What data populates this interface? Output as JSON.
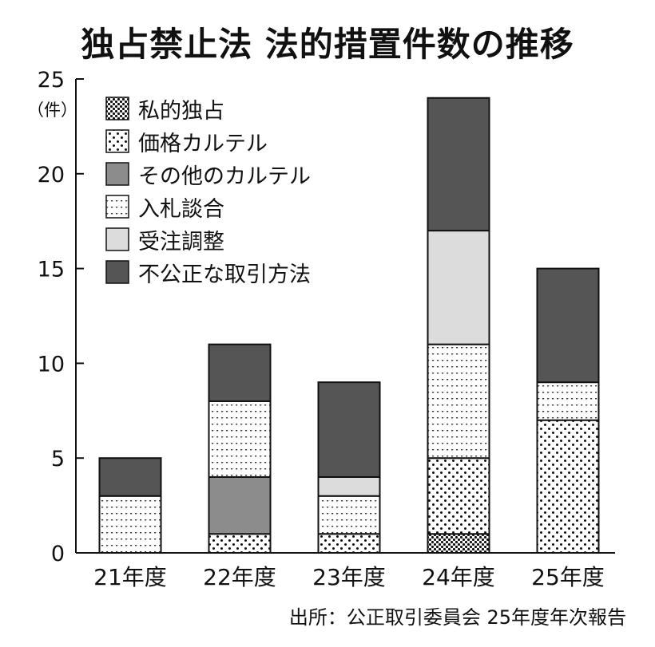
{
  "chart_data": {
    "type": "bar",
    "stacked": true,
    "title": "独占禁止法 法的措置件数の推移",
    "ylabel": "（件）",
    "xlabel": "",
    "ylim": [
      0,
      25
    ],
    "yticks": [
      0,
      5,
      10,
      15,
      20,
      25
    ],
    "categories": [
      "21年度",
      "22年度",
      "23年度",
      "24年度",
      "25年度"
    ],
    "series": [
      {
        "name": "私的独占",
        "pattern": "crosshatch",
        "values": [
          0,
          0,
          0,
          1,
          0
        ]
      },
      {
        "name": "価格カルテル",
        "pattern": "dots",
        "values": [
          0,
          1,
          1,
          4,
          7
        ]
      },
      {
        "name": "その他のカルテル",
        "pattern": "medium-gray",
        "color": "#8c8c8c",
        "values": [
          0,
          3,
          0,
          0,
          0
        ]
      },
      {
        "name": "入札談合",
        "pattern": "dotted-lines",
        "values": [
          3,
          4,
          2,
          6,
          2
        ]
      },
      {
        "name": "受注調整",
        "pattern": "light-gray",
        "color": "#dcdcdc",
        "values": [
          0,
          0,
          1,
          6,
          0
        ]
      },
      {
        "name": "不公正な取引方法",
        "pattern": "dark-gray",
        "color": "#555555",
        "values": [
          2,
          3,
          5,
          7,
          6
        ]
      }
    ],
    "legend_position": "top-left",
    "grid": false
  },
  "source": "出所：公正取引委員会 25年度年次報告"
}
